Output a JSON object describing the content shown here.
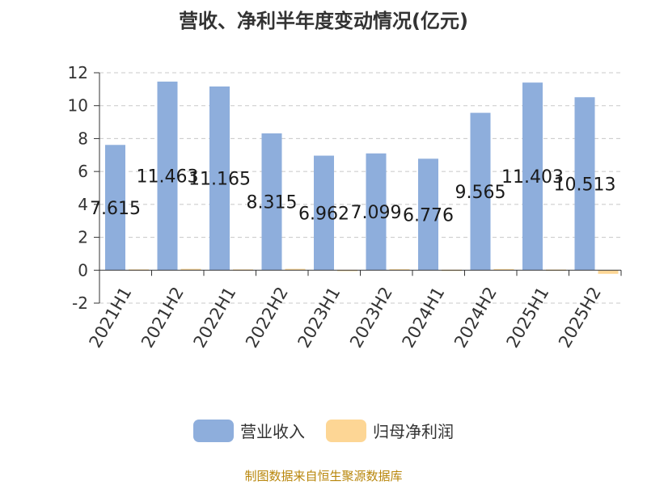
{
  "chart_data": {
    "type": "bar",
    "title": "营收、净利半年度变动情况(亿元)",
    "categories": [
      "2021H1",
      "2021H2",
      "2022H1",
      "2022H2",
      "2023H1",
      "2023H2",
      "2024H1",
      "2024H2",
      "2025H1",
      "2025H2"
    ],
    "series": [
      {
        "name": "营业收入",
        "color": "#8eaedc",
        "values": [
          7.615,
          11.463,
          11.165,
          8.315,
          6.962,
          7.099,
          6.776,
          9.565,
          11.403,
          10.513
        ],
        "labels": [
          "7.615",
          "11.463",
          "11.165",
          "8.315",
          "6.962",
          "7.099",
          "6.776",
          "9.565",
          "11.403",
          "10.513"
        ]
      },
      {
        "name": "归母净利润",
        "color": "#fdd695",
        "values": [
          0.05,
          0.08,
          0.05,
          0.08,
          0.02,
          0.06,
          0.03,
          0.07,
          0.04,
          -0.22
        ]
      }
    ],
    "yticks": [
      "-2",
      "0",
      "2",
      "4",
      "6",
      "8",
      "10",
      "12"
    ],
    "ylim": [
      -2,
      12
    ],
    "grid": true,
    "legend": "bottom"
  },
  "source": "制图数据来自恒生聚源数据库"
}
